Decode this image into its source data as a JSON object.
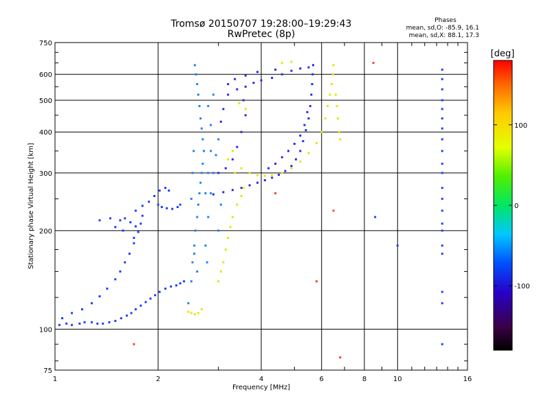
{
  "chart_data": {
    "type": "scatter",
    "title": "Tromsø 20150707 19:28:00–19:29:43",
    "subtitle": "RwPretec (8p)",
    "xlabel": "Frequency [MHz]",
    "ylabel": "Stationary phase Virtual Height [km]",
    "x_scale": "log",
    "y_scale": "log",
    "xlim": [
      1,
      16
    ],
    "ylim": [
      75,
      750
    ],
    "x_ticks": [
      1,
      2,
      4,
      6,
      8,
      10,
      16
    ],
    "x_tick_labels": [
      "1",
      "2",
      "4",
      "6",
      "8",
      "10",
      "16"
    ],
    "y_ticks": [
      75,
      100,
      200,
      300,
      400,
      500,
      600,
      750
    ],
    "y_tick_labels": [
      "75",
      "100",
      "200",
      "300",
      "400",
      "500",
      "600",
      "750"
    ],
    "grid": true,
    "phases_box": {
      "title": "Phases",
      "line_o": "mean, sd,O:  -85.9, 16.1",
      "line_x": "mean, sd,X:   88.1, 17.3"
    },
    "colorbar": {
      "label": "[deg]",
      "range": [
        -180,
        180
      ],
      "ticks": [
        100,
        0,
        -100
      ],
      "tick_labels": [
        "100",
        "0",
        "-100"
      ]
    },
    "series": [
      {
        "name": "O-mode low trace",
        "phase": -100,
        "color": "#1e3cff",
        "points": [
          [
            1.03,
            103
          ],
          [
            1.08,
            104
          ],
          [
            1.12,
            103
          ],
          [
            1.18,
            104
          ],
          [
            1.22,
            105
          ],
          [
            1.28,
            105
          ],
          [
            1.33,
            104
          ],
          [
            1.38,
            104
          ],
          [
            1.44,
            105
          ],
          [
            1.5,
            106
          ],
          [
            1.56,
            108
          ],
          [
            1.62,
            110
          ],
          [
            1.67,
            112
          ],
          [
            1.72,
            115
          ],
          [
            1.78,
            118
          ],
          [
            1.84,
            121
          ],
          [
            1.9,
            124
          ],
          [
            1.96,
            127
          ],
          [
            2.02,
            130
          ],
          [
            2.1,
            133
          ],
          [
            2.18,
            135
          ],
          [
            2.26,
            136
          ],
          [
            2.32,
            138
          ],
          [
            2.38,
            140
          ],
          [
            1.05,
            108
          ],
          [
            1.12,
            112
          ],
          [
            1.2,
            115
          ],
          [
            1.28,
            120
          ],
          [
            1.35,
            126
          ],
          [
            1.42,
            133
          ],
          [
            1.5,
            142
          ],
          [
            1.55,
            150
          ],
          [
            1.6,
            160
          ],
          [
            1.65,
            170
          ],
          [
            1.7,
            183
          ],
          [
            1.75,
            198
          ],
          [
            1.78,
            210
          ],
          [
            1.8,
            222
          ],
          [
            1.55,
            215
          ],
          [
            1.6,
            218
          ],
          [
            1.66,
            212
          ],
          [
            1.72,
            206
          ],
          [
            1.35,
            215
          ],
          [
            1.45,
            218
          ],
          [
            1.5,
            205
          ],
          [
            1.58,
            200
          ],
          [
            1.7,
            190
          ],
          [
            1.72,
            230
          ],
          [
            1.8,
            238
          ],
          [
            1.88,
            245
          ],
          [
            1.95,
            255
          ],
          [
            2.02,
            265
          ],
          [
            2.1,
            270
          ],
          [
            2.15,
            265
          ],
          [
            2.0,
            240
          ],
          [
            2.05,
            236
          ],
          [
            2.12,
            234
          ],
          [
            2.2,
            233
          ],
          [
            2.28,
            236
          ],
          [
            2.32,
            240
          ]
        ]
      },
      {
        "name": "O-mode F trace",
        "phase": -100,
        "color": "#2828e6",
        "points": [
          [
            2.9,
            258
          ],
          [
            3.1,
            262
          ],
          [
            3.3,
            266
          ],
          [
            3.5,
            270
          ],
          [
            3.7,
            275
          ],
          [
            3.9,
            280
          ],
          [
            4.1,
            285
          ],
          [
            4.3,
            290
          ],
          [
            4.5,
            296
          ],
          [
            4.7,
            304
          ],
          [
            4.9,
            315
          ],
          [
            5.05,
            330
          ],
          [
            5.2,
            350
          ],
          [
            5.3,
            375
          ],
          [
            5.4,
            405
          ],
          [
            5.5,
            440
          ],
          [
            5.56,
            480
          ],
          [
            5.6,
            520
          ],
          [
            5.63,
            560
          ],
          [
            5.65,
            600
          ],
          [
            5.67,
            640
          ],
          [
            3.0,
            300
          ],
          [
            3.15,
            310
          ],
          [
            3.3,
            330
          ],
          [
            3.4,
            360
          ],
          [
            3.5,
            400
          ],
          [
            3.6,
            450
          ],
          [
            3.55,
            500
          ],
          [
            3.4,
            540
          ],
          [
            3.2,
            520
          ],
          [
            3.1,
            470
          ],
          [
            3.05,
            430
          ],
          [
            3.6,
            550
          ],
          [
            3.8,
            565
          ],
          [
            4.0,
            575
          ],
          [
            4.3,
            585
          ],
          [
            4.6,
            600
          ],
          [
            4.9,
            615
          ],
          [
            5.2,
            625
          ],
          [
            5.5,
            630
          ],
          [
            4.2,
            310
          ],
          [
            4.4,
            320
          ],
          [
            4.6,
            335
          ],
          [
            4.8,
            350
          ],
          [
            5.0,
            368
          ],
          [
            5.2,
            390
          ],
          [
            5.35,
            420
          ],
          [
            5.45,
            460
          ],
          [
            3.2,
            560
          ],
          [
            3.35,
            580
          ],
          [
            3.6,
            595
          ],
          [
            3.9,
            610
          ],
          [
            4.4,
            620
          ]
        ]
      },
      {
        "name": "Vertical spread",
        "phase": -90,
        "color": "#1e82f0",
        "points": [
          [
            2.45,
            120
          ],
          [
            2.5,
            140
          ],
          [
            2.52,
            160
          ],
          [
            2.55,
            180
          ],
          [
            2.57,
            200
          ],
          [
            2.6,
            220
          ],
          [
            2.62,
            240
          ],
          [
            2.64,
            260
          ],
          [
            2.66,
            280
          ],
          [
            2.68,
            300
          ],
          [
            2.7,
            320
          ],
          [
            2.72,
            350
          ],
          [
            2.7,
            380
          ],
          [
            2.68,
            410
          ],
          [
            2.66,
            440
          ],
          [
            2.64,
            480
          ],
          [
            2.62,
            520
          ],
          [
            2.6,
            560
          ],
          [
            2.58,
            600
          ],
          [
            2.56,
            640
          ],
          [
            2.8,
            220
          ],
          [
            2.85,
            260
          ],
          [
            2.9,
            300
          ],
          [
            2.95,
            340
          ],
          [
            3.0,
            380
          ],
          [
            2.85,
            420
          ],
          [
            2.8,
            480
          ],
          [
            2.9,
            520
          ],
          [
            3.0,
            200
          ],
          [
            3.05,
            240
          ],
          [
            2.75,
            180
          ],
          [
            2.78,
            160
          ],
          [
            2.55,
            170
          ],
          [
            2.6,
            150
          ],
          [
            2.75,
            260
          ],
          [
            2.8,
            300
          ],
          [
            2.85,
            350
          ],
          [
            2.5,
            250
          ],
          [
            2.52,
            300
          ],
          [
            2.54,
            350
          ]
        ]
      },
      {
        "name": "X-mode trace",
        "phase": 100,
        "color": "#e6e600",
        "points": [
          [
            2.45,
            113
          ],
          [
            2.5,
            112
          ],
          [
            2.56,
            111
          ],
          [
            2.62,
            112
          ],
          [
            2.68,
            115
          ],
          [
            3.0,
            140
          ],
          [
            3.05,
            150
          ],
          [
            3.1,
            160
          ],
          [
            3.15,
            175
          ],
          [
            3.2,
            190
          ],
          [
            3.25,
            205
          ],
          [
            3.3,
            220
          ],
          [
            3.4,
            240
          ],
          [
            3.5,
            255
          ],
          [
            3.55,
            270
          ],
          [
            3.35,
            300
          ],
          [
            3.5,
            310
          ],
          [
            3.7,
            300
          ],
          [
            3.9,
            295
          ],
          [
            4.1,
            294
          ],
          [
            4.3,
            295
          ],
          [
            4.6,
            300
          ],
          [
            4.9,
            310
          ],
          [
            5.2,
            325
          ],
          [
            5.5,
            345
          ],
          [
            5.8,
            370
          ],
          [
            6.0,
            400
          ],
          [
            6.15,
            440
          ],
          [
            6.25,
            480
          ],
          [
            6.35,
            520
          ],
          [
            6.42,
            560
          ],
          [
            6.48,
            600
          ],
          [
            6.5,
            640
          ],
          [
            6.6,
            520
          ],
          [
            6.65,
            480
          ],
          [
            6.7,
            440
          ],
          [
            6.75,
            400
          ],
          [
            6.8,
            380
          ],
          [
            3.2,
            330
          ],
          [
            3.3,
            350
          ],
          [
            3.45,
            490
          ],
          [
            3.6,
            470
          ],
          [
            4.6,
            650
          ],
          [
            4.9,
            655
          ]
        ]
      },
      {
        "name": "Scattered",
        "phase": 120,
        "color": "#ff3c3c",
        "points": [
          [
            1.7,
            90
          ],
          [
            5.8,
            140
          ],
          [
            6.8,
            82
          ],
          [
            6.5,
            230
          ],
          [
            8.5,
            650
          ],
          [
            4.4,
            260
          ]
        ]
      },
      {
        "name": "Column at 13 MHz",
        "phase": -95,
        "color": "#2040ff",
        "points": [
          [
            13.5,
            90
          ],
          [
            13.5,
            120
          ],
          [
            13.5,
            130
          ],
          [
            13.5,
            170
          ],
          [
            13.5,
            180
          ],
          [
            13.5,
            200
          ],
          [
            13.5,
            210
          ],
          [
            13.5,
            230
          ],
          [
            13.5,
            250
          ],
          [
            13.5,
            270
          ],
          [
            13.5,
            300
          ],
          [
            13.5,
            320
          ],
          [
            13.5,
            350
          ],
          [
            13.5,
            380
          ],
          [
            13.5,
            410
          ],
          [
            13.5,
            440
          ],
          [
            13.5,
            470
          ],
          [
            13.5,
            500
          ],
          [
            13.5,
            540
          ],
          [
            13.5,
            580
          ],
          [
            13.5,
            620
          ],
          [
            10.0,
            180
          ],
          [
            8.6,
            220
          ]
        ]
      }
    ]
  }
}
